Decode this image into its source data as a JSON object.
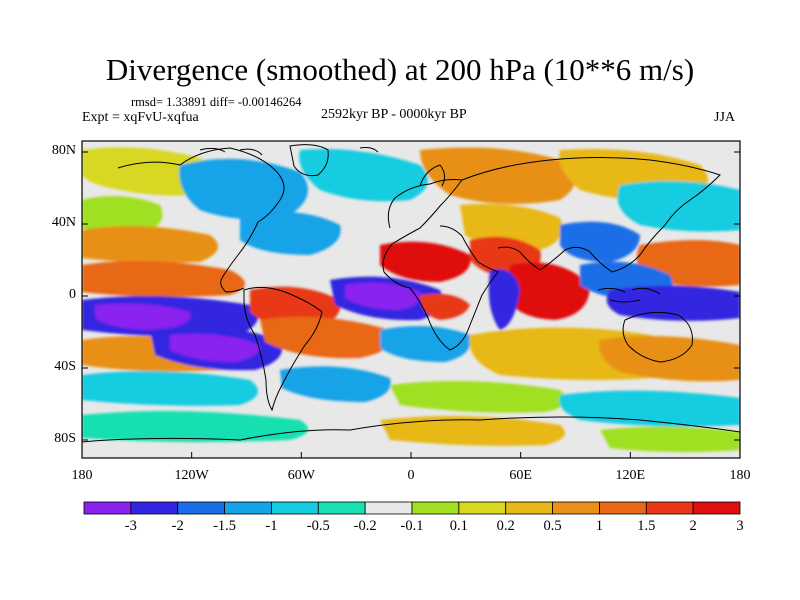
{
  "title": "Divergence (smoothed) at 200 hPa (10**6 m/s)",
  "stats": "rmsd= 1.33891 diff= -0.00146264",
  "experiment": "Expt = xqFvU-xqfua",
  "period": "2592kyr BP - 0000kyr BP",
  "season": "JJA",
  "lat_labels": [
    "80N",
    "40N",
    "0",
    "40S",
    "80S"
  ],
  "lon_labels": [
    "180",
    "120W",
    "60W",
    "0",
    "60E",
    "120E",
    "180"
  ],
  "colorbar": {
    "labels": [
      "-3",
      "-2",
      "-1.5",
      "-1",
      "-0.5",
      "-0.2",
      "-0.1",
      "0.1",
      "0.2",
      "0.5",
      "1",
      "1.5",
      "2",
      "3"
    ],
    "colors": [
      "#8a22f0",
      "#3226e0",
      "#1a6ee8",
      "#14a3e8",
      "#18cce0",
      "#18e0b0",
      "#e8e8e8",
      "#a0e020",
      "#d8d820",
      "#e8b818",
      "#e89018",
      "#e86818",
      "#e83818",
      "#e01010"
    ]
  },
  "contour_levels": [
    -3,
    -2,
    -1.5,
    -1,
    -0.5,
    -0.2,
    -0.1,
    0.1,
    0.2,
    0.5,
    1,
    1.5,
    2,
    3
  ],
  "map_region": {
    "lon_range": [
      -180,
      180
    ],
    "lat_range": [
      -90,
      90
    ]
  }
}
